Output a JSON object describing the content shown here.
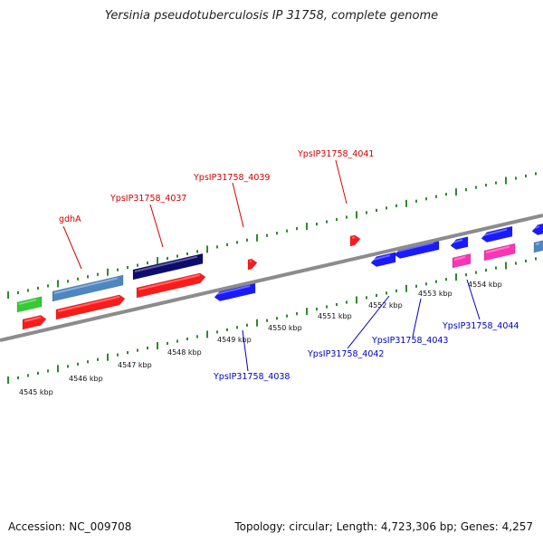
{
  "title": "Yersinia pseudotuberculosis IP 31758, complete genome",
  "footer": {
    "accession": "Accession: NC_009708",
    "summary": "Topology: circular; Length: 4,723,306 bp; Genes: 4,257"
  },
  "kbp_labels": [
    "4545 kbp",
    "4546 kbp",
    "4547 kbp",
    "4548 kbp",
    "4549 kbp",
    "4550 kbp",
    "4551 kbp",
    "4552 kbp",
    "4553 kbp",
    "4554 kbp"
  ],
  "gene_labels_top": [
    "gdhA",
    "YpsIP31758_4037",
    "YpsIP31758_4039",
    "YpsIP31758_4041"
  ],
  "gene_labels_bottom": [
    "YpsIP31758_4038",
    "YpsIP31758_4042",
    "YpsIP31758_4043",
    "YpsIP31758_4044"
  ],
  "colors": {
    "background": "#ffffff",
    "backbone": "#8c8c8c",
    "tick": "#2e8b2e",
    "gene_red": "#ff1a1a",
    "gene_blue": "#1a1aff",
    "gene_navy": "#0c0c6e",
    "gene_steel": "#4d86c2",
    "gene_green": "#33cc33",
    "gene_pink": "#ff33b5",
    "label_red": "#d00000",
    "label_blue": "#0000c0"
  }
}
